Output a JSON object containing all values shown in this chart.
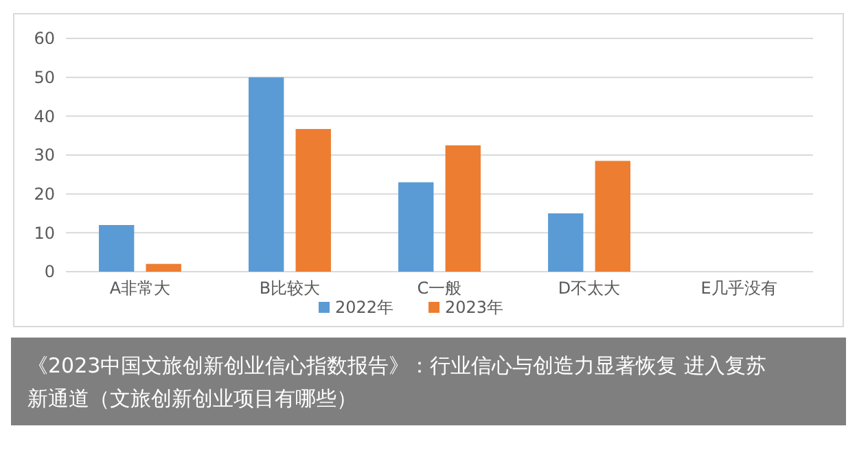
{
  "chart_data": {
    "type": "bar",
    "title": "《2023中国文旅创新创业信心指数报告》：行业信心与创造力显著恢复 进入复苏新通道（文旅创新创业项目有哪些）",
    "categories": [
      "A非常大",
      "B比较大",
      "C一般",
      "D不太大",
      "E几乎没有"
    ],
    "series": [
      {
        "name": "2022年",
        "color": "#5b9bd5",
        "values": [
          12,
          50,
          23,
          15,
          0
        ]
      },
      {
        "name": "2023年",
        "color": "#ed7d31",
        "values": [
          2,
          36.7,
          32.5,
          28.5,
          0
        ]
      }
    ],
    "ylim": [
      0,
      60
    ],
    "yticks": [
      0,
      10,
      20,
      30,
      40,
      50,
      60
    ],
    "grid": "y",
    "legend": "bottom"
  }
}
